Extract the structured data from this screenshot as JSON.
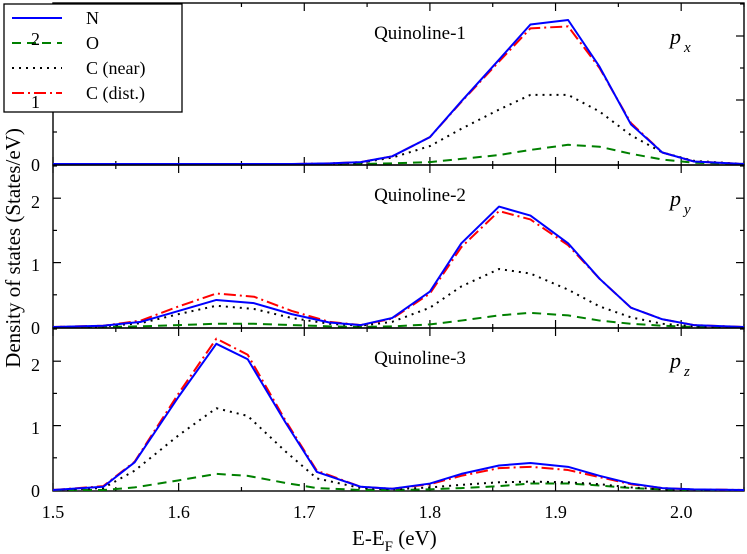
{
  "chart_data": {
    "type": "line",
    "xlabel": "E-E",
    "xlabel_sub": "F",
    "xlabel_unit": " (eV)",
    "ylabel": "Density of states (States/eV)",
    "xlim": [
      1.5,
      2.05
    ],
    "x_ticks": [
      1.5,
      1.6,
      1.7,
      1.8,
      1.9,
      2.0
    ],
    "x_tick_labels": [
      "1.5",
      "1.6",
      "1.7",
      "1.8",
      "1.9",
      "2.0"
    ],
    "y_tick_labels": [
      "0",
      "1",
      "2"
    ],
    "legend": [
      {
        "name": "N",
        "color": "#0000ff",
        "dash": "solid"
      },
      {
        "name": "O",
        "color": "#008000",
        "dash": "dashed"
      },
      {
        "name": "C (near)",
        "color": "#000000",
        "dash": "dotted"
      },
      {
        "name": "C (dist.)",
        "color": "#ff0000",
        "dash": "dashdot"
      }
    ],
    "panels": [
      {
        "title": "Quinoline-1",
        "orbital": "p",
        "orbital_sub": "x",
        "ylim": [
          0,
          2.5
        ],
        "yticks": [
          0,
          1,
          2
        ],
        "x": [
          1.5,
          1.54,
          1.57,
          1.6,
          1.63,
          1.66,
          1.69,
          1.72,
          1.745,
          1.77,
          1.8,
          1.825,
          1.855,
          1.88,
          1.91,
          1.935,
          1.96,
          1.985,
          2.01,
          2.05
        ],
        "series": [
          {
            "name": "N",
            "values": [
              0,
              0,
              0,
              0,
              0,
              0,
              0,
              0.01,
              0.03,
              0.12,
              0.42,
              0.98,
              1.63,
              2.18,
              2.25,
              1.52,
              0.62,
              0.18,
              0.04,
              0
            ]
          },
          {
            "name": "O",
            "values": [
              0,
              0,
              0,
              0,
              0,
              0,
              0,
              0,
              0,
              0.01,
              0.03,
              0.08,
              0.14,
              0.22,
              0.3,
              0.27,
              0.16,
              0.07,
              0.02,
              0
            ]
          },
          {
            "name": "C (near)",
            "values": [
              0,
              0,
              0,
              0,
              0,
              0,
              0,
              0,
              0.02,
              0.1,
              0.28,
              0.55,
              0.85,
              1.08,
              1.08,
              0.82,
              0.45,
              0.18,
              0.05,
              0
            ]
          },
          {
            "name": "C (dist.)",
            "values": [
              0,
              0,
              0,
              0,
              0,
              0,
              0,
              0.01,
              0.03,
              0.12,
              0.42,
              0.97,
              1.6,
              2.12,
              2.15,
              1.5,
              0.64,
              0.18,
              0.04,
              0
            ]
          }
        ]
      },
      {
        "title": "Quinoline-2",
        "orbital": "p",
        "orbital_sub": "y",
        "ylim": [
          0,
          2.5
        ],
        "yticks": [
          0,
          1,
          2
        ],
        "x": [
          1.5,
          1.54,
          1.57,
          1.6,
          1.63,
          1.66,
          1.69,
          1.72,
          1.745,
          1.77,
          1.8,
          1.825,
          1.855,
          1.88,
          1.91,
          1.935,
          1.96,
          1.985,
          2.01,
          2.05
        ],
        "series": [
          {
            "name": "N",
            "values": [
              0,
              0.02,
              0.08,
              0.25,
              0.42,
              0.37,
              0.2,
              0.07,
              0.03,
              0.14,
              0.55,
              1.3,
              1.87,
              1.73,
              1.3,
              0.75,
              0.3,
              0.12,
              0.03,
              0
            ]
          },
          {
            "name": "O",
            "values": [
              0,
              0,
              0.01,
              0.03,
              0.05,
              0.05,
              0.03,
              0.01,
              0,
              0.01,
              0.04,
              0.1,
              0.18,
              0.22,
              0.18,
              0.1,
              0.05,
              0.02,
              0,
              0
            ]
          },
          {
            "name": "C (near)",
            "values": [
              0,
              0.01,
              0.06,
              0.2,
              0.33,
              0.28,
              0.14,
              0.05,
              0.02,
              0.08,
              0.3,
              0.63,
              0.9,
              0.83,
              0.58,
              0.32,
              0.15,
              0.05,
              0.01,
              0
            ]
          },
          {
            "name": "C (dist.)",
            "values": [
              0,
              0.02,
              0.1,
              0.32,
              0.52,
              0.47,
              0.25,
              0.08,
              0.03,
              0.13,
              0.52,
              1.24,
              1.8,
              1.67,
              1.27,
              0.75,
              0.3,
              0.12,
              0.03,
              0
            ]
          }
        ]
      },
      {
        "title": "Quinoline-3",
        "orbital": "p",
        "orbital_sub": "z",
        "ylim": [
          0,
          2.5
        ],
        "yticks": [
          0,
          1,
          2
        ],
        "x": [
          1.5,
          1.54,
          1.565,
          1.6,
          1.63,
          1.655,
          1.685,
          1.71,
          1.745,
          1.77,
          1.8,
          1.825,
          1.855,
          1.88,
          1.91,
          1.935,
          1.96,
          1.985,
          2.01,
          2.05
        ],
        "series": [
          {
            "name": "N",
            "values": [
              0,
              0.05,
              0.43,
              1.45,
              2.27,
              2.03,
              1.05,
              0.28,
              0.05,
              0.02,
              0.1,
              0.25,
              0.38,
              0.42,
              0.36,
              0.22,
              0.1,
              0.03,
              0.01,
              0
            ]
          },
          {
            "name": "O",
            "values": [
              0,
              0,
              0.04,
              0.15,
              0.25,
              0.22,
              0.11,
              0.03,
              0,
              0,
              0.01,
              0.03,
              0.06,
              0.1,
              0.1,
              0.07,
              0.03,
              0.01,
              0,
              0
            ]
          },
          {
            "name": "C (near)",
            "values": [
              0,
              0.03,
              0.3,
              0.85,
              1.27,
              1.15,
              0.6,
              0.18,
              0.03,
              0.01,
              0.04,
              0.08,
              0.12,
              0.13,
              0.12,
              0.09,
              0.04,
              0.01,
              0,
              0
            ]
          },
          {
            "name": "C (dist.)",
            "values": [
              0,
              0.06,
              0.44,
              1.5,
              2.35,
              2.1,
              1.08,
              0.3,
              0.05,
              0.02,
              0.09,
              0.22,
              0.34,
              0.36,
              0.31,
              0.2,
              0.09,
              0.03,
              0.01,
              0
            ]
          }
        ]
      }
    ]
  }
}
